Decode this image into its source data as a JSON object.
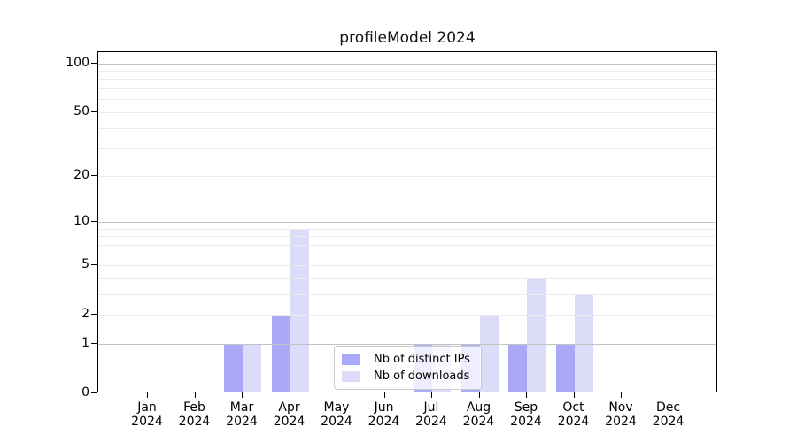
{
  "figure": {
    "title": "profileModel 2024"
  },
  "chart_data": {
    "type": "bar",
    "title": "profileModel 2024",
    "categories": [
      "Jan",
      "Feb",
      "Mar",
      "Apr",
      "May",
      "Jun",
      "Jul",
      "Aug",
      "Sep",
      "Oct",
      "Nov",
      "Dec"
    ],
    "category_year": "2024",
    "series": [
      {
        "name": "Nb of distinct IPs",
        "color": "#a9a9f8",
        "values": [
          0,
          0,
          1,
          2,
          0,
          0,
          1,
          1,
          1,
          1,
          0,
          0
        ]
      },
      {
        "name": "Nb of downloads",
        "color": "#dcdcf8",
        "values": [
          0,
          0,
          1,
          9,
          0,
          0,
          1,
          2,
          4,
          3,
          0,
          0
        ]
      }
    ],
    "yscale": "log10(1+x)",
    "ylim": [
      0,
      117
    ],
    "yticks": [
      0,
      1,
      2,
      5,
      10,
      20,
      50,
      100
    ],
    "major_gridlines": [
      1,
      10,
      100
    ],
    "minor_gridlines": [
      2,
      3,
      4,
      5,
      6,
      7,
      8,
      9,
      20,
      30,
      40,
      50,
      60,
      70,
      80,
      90
    ],
    "grid": true,
    "grid_above_bars": true,
    "legend_position": "lower center",
    "colors": {
      "major_grid": "#c3c3c3",
      "minor_grid": "#ebebeb",
      "spine": "#000000",
      "background": "#ffffff"
    }
  }
}
